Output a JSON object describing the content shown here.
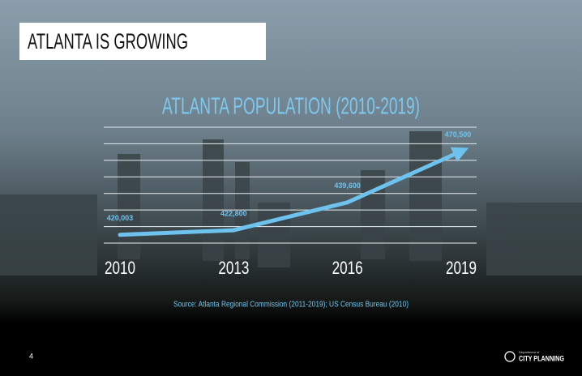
{
  "slide": {
    "heading": "ATLANTA IS GROWING",
    "page_number": "4",
    "logo": {
      "department": "Department of",
      "name": "CITY PLANNING"
    }
  },
  "chart_data": {
    "type": "line",
    "title": "ATLANTA POPULATION (2010-2019)",
    "categories": [
      "2010",
      "2013",
      "2016",
      "2019"
    ],
    "values": [
      420003,
      422800,
      439600,
      470500
    ],
    "value_labels": [
      "420,003",
      "422,800",
      "439,600",
      "470,500"
    ],
    "color": "#6ec3ee",
    "ylim": [
      415000,
      485000
    ],
    "yticks": [
      415000,
      425000,
      435000,
      445000,
      455000,
      465000,
      475000,
      485000
    ],
    "grid": true,
    "source": "Source: Atlanta Regional Commission (2011-2019); US Census Bureau (2010)"
  }
}
